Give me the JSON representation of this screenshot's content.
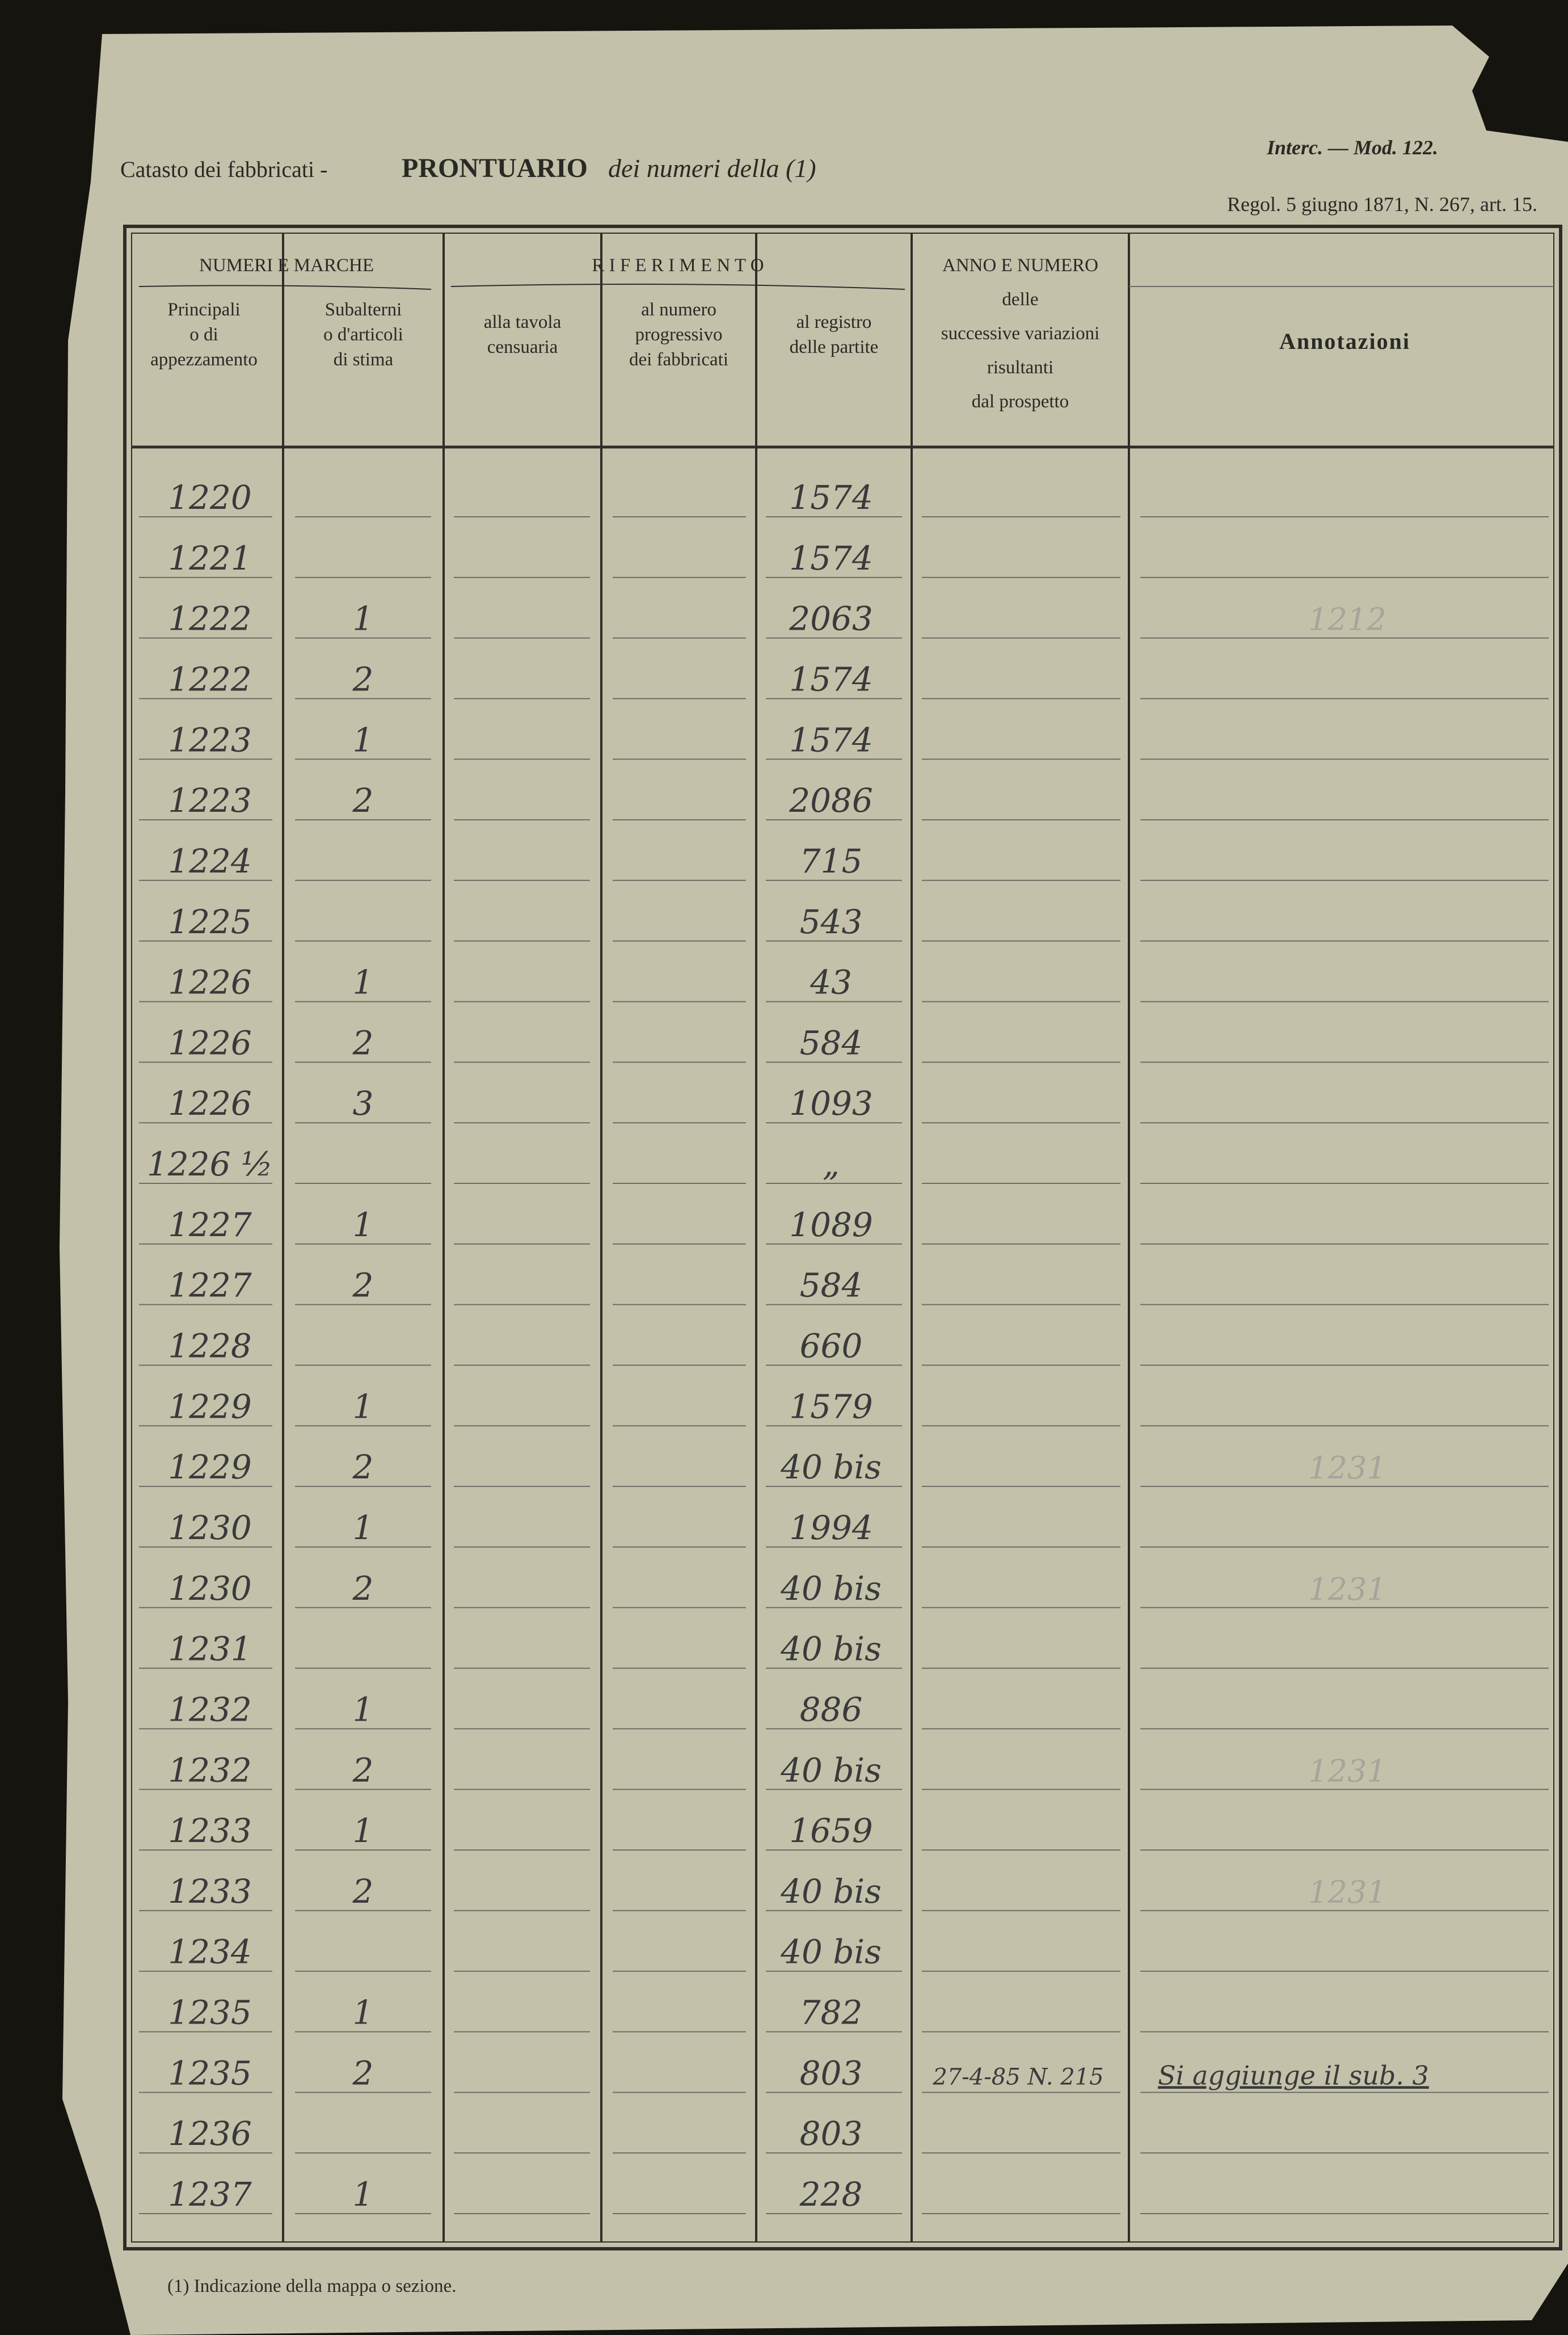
{
  "header": {
    "title_left": "Catasto dei fabbricati -",
    "title_main": "PRONTUARIO",
    "title_italic": "dei numeri della (1)",
    "model": "Interc. — Mod. 122.",
    "regulation": "Regol. 5 giugno 1871, N. 267, art. 15."
  },
  "table": {
    "groups": [
      "NUMERI E MARCHE",
      "R I F E R I M E N T O"
    ],
    "columns": [
      [
        "Principali",
        "o di",
        "appezzamento"
      ],
      [
        "Subalterni",
        "o d'articoli",
        "di stima"
      ],
      [
        "alla tavola",
        "censuaria"
      ],
      [
        "al numero",
        "progressivo",
        "dei fabbricati"
      ],
      [
        "al registro",
        "delle partite"
      ],
      [
        "ANNO E NUMERO",
        "delle",
        "successive variazioni",
        "risultanti",
        "dal prospetto"
      ],
      [
        "Annotazioni"
      ]
    ],
    "rows": [
      {
        "principale": "1220",
        "registro": "1574"
      },
      {
        "principale": "1221",
        "registro": "1574"
      },
      {
        "principale": "1222",
        "subalterno": "1",
        "registro": "2063",
        "annotazioni": "1212"
      },
      {
        "principale": "1222",
        "subalterno": "2",
        "registro": "1574"
      },
      {
        "principale": "1223",
        "subalterno": "1",
        "registro": "1574"
      },
      {
        "principale": "1223",
        "subalterno": "2",
        "registro": "2086"
      },
      {
        "principale": "1224",
        "registro": "715"
      },
      {
        "principale": "1225",
        "registro": "543"
      },
      {
        "principale": "1226",
        "subalterno": "1",
        "registro": "43"
      },
      {
        "principale": "1226",
        "subalterno": "2",
        "registro": "584"
      },
      {
        "principale": "1226",
        "subalterno": "3",
        "registro": "1093"
      },
      {
        "principale": "1226 ½",
        "registro": "„"
      },
      {
        "principale": "1227",
        "subalterno": "1",
        "registro": "1089"
      },
      {
        "principale": "1227",
        "subalterno": "2",
        "registro": "584"
      },
      {
        "principale": "1228",
        "registro": "660"
      },
      {
        "principale": "1229",
        "subalterno": "1",
        "registro": "1579"
      },
      {
        "principale": "1229",
        "subalterno": "2",
        "registro": "40 bis",
        "annotazioni": "1231"
      },
      {
        "principale": "1230",
        "subalterno": "1",
        "registro": "1994"
      },
      {
        "principale": "1230",
        "subalterno": "2",
        "registro": "40 bis",
        "annotazioni": "1231"
      },
      {
        "principale": "1231",
        "registro": "40 bis"
      },
      {
        "principale": "1232",
        "subalterno": "1",
        "registro": "886"
      },
      {
        "principale": "1232",
        "subalterno": "2",
        "registro": "40 bis",
        "annotazioni": "1231"
      },
      {
        "principale": "1233",
        "subalterno": "1",
        "registro": "1659"
      },
      {
        "principale": "1233",
        "subalterno": "2",
        "registro": "40 bis",
        "annotazioni": "1231"
      },
      {
        "principale": "1234",
        "registro": "40 bis"
      },
      {
        "principale": "1235",
        "subalterno": "1",
        "registro": "782"
      },
      {
        "principale": "1235",
        "subalterno": "2",
        "registro": "803",
        "variazioni": "27-4-85 N. 215",
        "annotazioni": "Si aggiunge il sub. 3"
      },
      {
        "principale": "1236",
        "registro": "803"
      },
      {
        "principale": "1237",
        "subalterno": "1",
        "registro": "228"
      }
    ]
  },
  "footnote": "(1) Indicazione della mappa o sezione."
}
